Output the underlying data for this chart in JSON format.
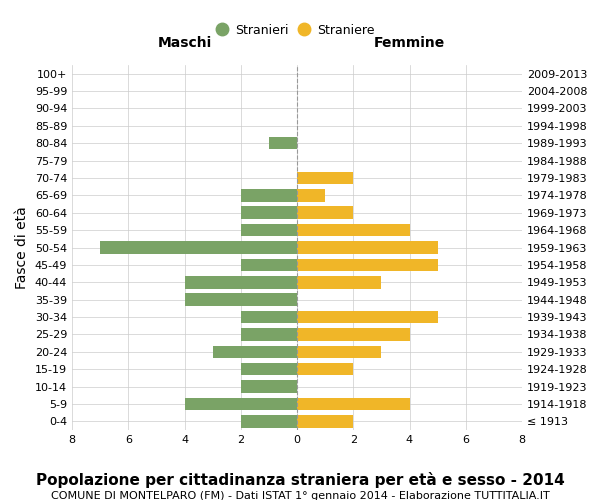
{
  "age_groups": [
    "100+",
    "95-99",
    "90-94",
    "85-89",
    "80-84",
    "75-79",
    "70-74",
    "65-69",
    "60-64",
    "55-59",
    "50-54",
    "45-49",
    "40-44",
    "35-39",
    "30-34",
    "25-29",
    "20-24",
    "15-19",
    "10-14",
    "5-9",
    "0-4"
  ],
  "birth_years": [
    "≤ 1913",
    "1914-1918",
    "1919-1923",
    "1924-1928",
    "1929-1933",
    "1934-1938",
    "1939-1943",
    "1944-1948",
    "1949-1953",
    "1954-1958",
    "1959-1963",
    "1964-1968",
    "1969-1973",
    "1974-1978",
    "1979-1983",
    "1984-1988",
    "1989-1993",
    "1994-1998",
    "1999-2003",
    "2004-2008",
    "2009-2013"
  ],
  "maschi": [
    0,
    0,
    0,
    0,
    1,
    0,
    0,
    2,
    2,
    2,
    7,
    2,
    4,
    4,
    2,
    2,
    3,
    2,
    2,
    4,
    2
  ],
  "femmine": [
    0,
    0,
    0,
    0,
    0,
    0,
    2,
    1,
    2,
    4,
    5,
    5,
    3,
    0,
    5,
    4,
    3,
    2,
    0,
    4,
    2
  ],
  "male_color": "#7aa366",
  "female_color": "#f0b628",
  "background_color": "#ffffff",
  "grid_color": "#cccccc",
  "center_line_color": "#999999",
  "title": "Popolazione per cittadinanza straniera per età e sesso - 2014",
  "subtitle": "COMUNE DI MONTELPARO (FM) - Dati ISTAT 1° gennaio 2014 - Elaborazione TUTTITALIA.IT",
  "ylabel_left": "Fasce di età",
  "xlabel_left": "Maschi",
  "xlabel_right": "Femmine",
  "legend_male": "Stranieri",
  "legend_female": "Straniere",
  "xlim": 8,
  "title_fontsize": 11,
  "subtitle_fontsize": 8,
  "tick_fontsize": 8,
  "label_fontsize": 10
}
